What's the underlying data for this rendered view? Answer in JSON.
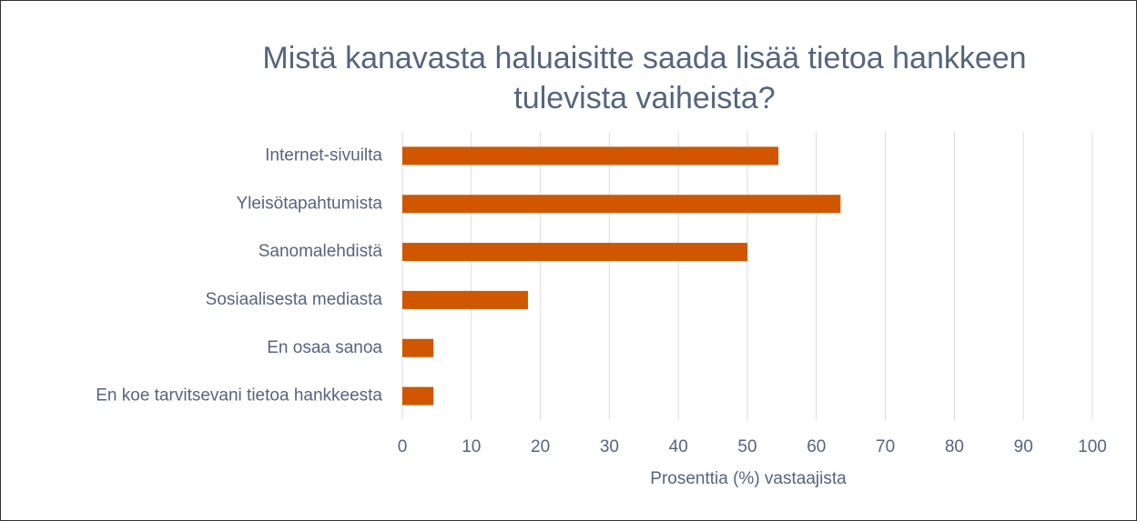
{
  "chart_data": {
    "type": "bar",
    "orientation": "horizontal",
    "title": "Mistä kanavasta haluaisitte saada lisää tietoa hankkeen tulevista vaiheista?",
    "categories": [
      "Internet-sivuilta",
      "Yleisötapahtumista",
      "Sanomalehdistä",
      "Sosiaalisesta mediasta",
      "En osaa sanoa",
      "En koe tarvitsevani tietoa hankkeesta"
    ],
    "values": [
      54.5,
      63.5,
      50,
      18.2,
      4.5,
      4.5
    ],
    "color": "#d05600",
    "xlabel": "Prosenttia (%) vastaajista",
    "xlim": [
      0,
      100
    ],
    "xticks": [
      0,
      10,
      20,
      30,
      40,
      50,
      60,
      70,
      80,
      90,
      100
    ],
    "grid": true
  }
}
